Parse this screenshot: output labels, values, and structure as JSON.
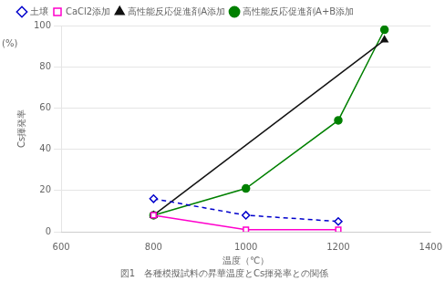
{
  "chart_data": {
    "type": "line",
    "title": "図1　各種模擬試料の昇華温度とCs揮発率との関係",
    "xlabel": "温度（℃）",
    "ylabel": "Cs揮発率",
    "annotations": [
      "(%)"
    ],
    "series": [
      {
        "name": "土壌",
        "x": [
          800,
          1000,
          1200
        ],
        "values": [
          16,
          8,
          5
        ],
        "color": "#0000CC",
        "line_style": "dashed",
        "marker": "diamond-open"
      },
      {
        "name": "CaCl2添加",
        "x": [
          800,
          1000,
          1200
        ],
        "values": [
          8,
          1,
          1
        ],
        "color": "#FF00CC",
        "line_style": "solid",
        "marker": "square-open"
      },
      {
        "name": "高性能反応促進剤A添加",
        "x": [
          800,
          1300
        ],
        "values": [
          8,
          93
        ],
        "color": "#111111",
        "line_style": "solid",
        "marker": "triangle"
      },
      {
        "name": "高性能反応促進剤A+B添加",
        "x": [
          800,
          1000,
          1200,
          1300
        ],
        "values": [
          8,
          21,
          54,
          98
        ],
        "color": "#008000",
        "line_style": "solid",
        "marker": "circle"
      }
    ],
    "xlim": [
      600,
      1400
    ],
    "ylim": [
      0,
      100
    ],
    "xticks": [
      600,
      800,
      1000,
      1200,
      1400
    ],
    "yticks": [
      0,
      20,
      40,
      60,
      80,
      100
    ],
    "grid": "y",
    "legend": "upper left"
  }
}
